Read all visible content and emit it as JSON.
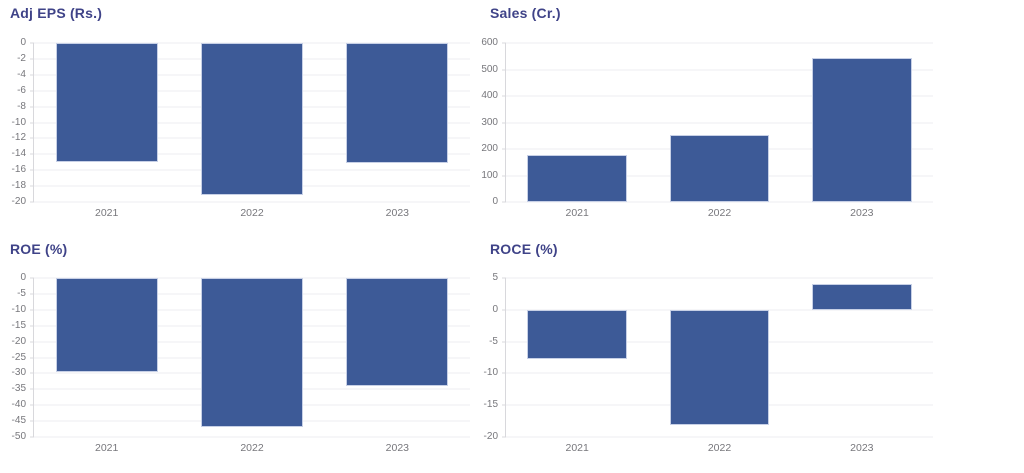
{
  "page": {
    "background": "#ffffff"
  },
  "colors": {
    "bar_fill": "#3d5a97",
    "bar_border": "#c7d0e6",
    "title_text": "#3f4388",
    "tick_text": "#77777c",
    "axis_line": "#d8d8dc",
    "gridline": "#ededf0"
  },
  "chart_data": [
    {
      "id": "adj-eps",
      "type": "bar",
      "title": "Adj EPS (Rs.)",
      "categories": [
        "2021",
        "2022",
        "2023"
      ],
      "values": [
        -15.0,
        -19.1,
        -15.1
      ],
      "xlabel": "",
      "ylabel": "",
      "ylim": [
        -20,
        0
      ],
      "yticks": [
        0,
        -2,
        -4,
        -6,
        -8,
        -10,
        -12,
        -14,
        -16,
        -18,
        -20
      ],
      "grid": true,
      "legend": "none"
    },
    {
      "id": "sales",
      "type": "bar",
      "title": "Sales (Cr.)",
      "categories": [
        "2021",
        "2022",
        "2023"
      ],
      "values": [
        177,
        253,
        545
      ],
      "xlabel": "",
      "ylabel": "",
      "ylim": [
        0,
        600
      ],
      "yticks": [
        600,
        500,
        400,
        300,
        200,
        100,
        0
      ],
      "grid": true,
      "legend": "none"
    },
    {
      "id": "roe",
      "type": "bar",
      "title": "ROE (%)",
      "categories": [
        "2021",
        "2022",
        "2023"
      ],
      "values": [
        -29.6,
        -46.8,
        -33.9
      ],
      "xlabel": "",
      "ylabel": "",
      "ylim": [
        -50,
        0
      ],
      "yticks": [
        0,
        -5,
        -10,
        -15,
        -20,
        -25,
        -30,
        -35,
        -40,
        -45,
        -50
      ],
      "grid": true,
      "legend": "none"
    },
    {
      "id": "roce",
      "type": "bar",
      "title": "ROCE (%)",
      "categories": [
        "2021",
        "2022",
        "2023"
      ],
      "values": [
        -7.8,
        -18.1,
        4.0
      ],
      "xlabel": "",
      "ylabel": "",
      "ylim": [
        -20,
        5
      ],
      "yticks": [
        5,
        0,
        -5,
        -10,
        -15,
        -20
      ],
      "grid": true,
      "legend": "none"
    }
  ]
}
